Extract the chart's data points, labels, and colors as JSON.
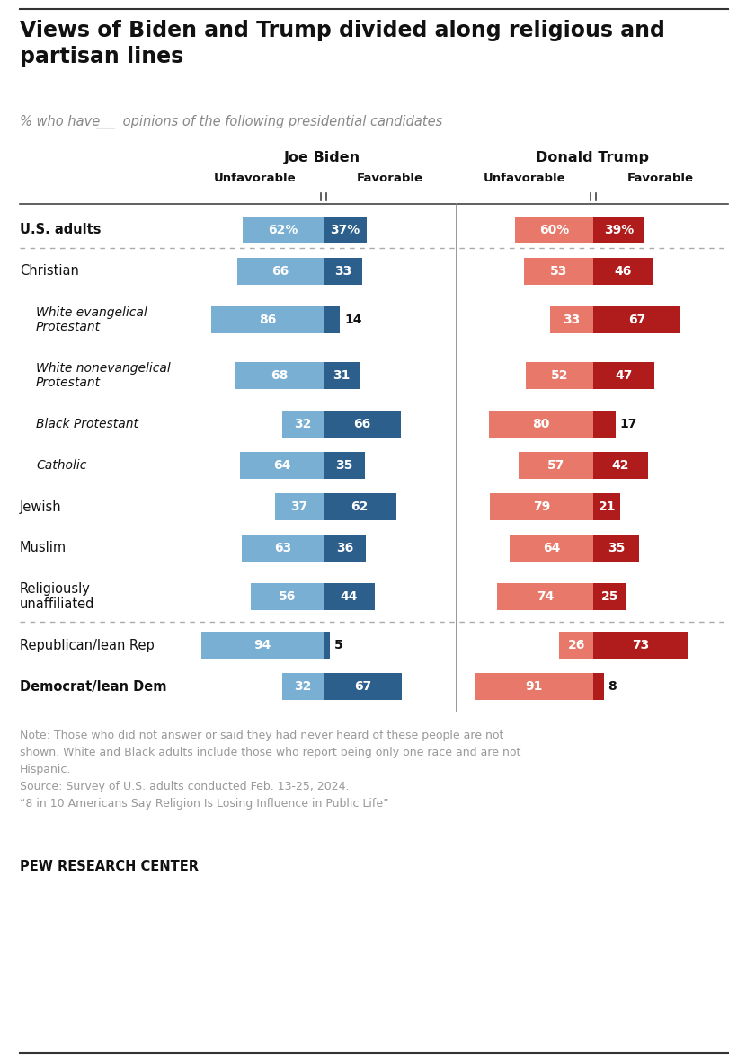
{
  "title": "Views of Biden and Trump divided along religious and\npartisan lines",
  "subtitle_parts": [
    "% who have ",
    "___",
    " opinions of the following presidential candidates"
  ],
  "biden_label": "Joe Biden",
  "trump_label": "Donald Trump",
  "rows": [
    {
      "label": "U.S. adults",
      "bold": true,
      "italic": false,
      "indent": 0,
      "biden_unf": 62,
      "biden_fav": 37,
      "trump_unf": 60,
      "trump_fav": 39,
      "pct_sign": true,
      "separator_above": false
    },
    {
      "label": "Christian",
      "bold": false,
      "italic": false,
      "indent": 0,
      "biden_unf": 66,
      "biden_fav": 33,
      "trump_unf": 53,
      "trump_fav": 46,
      "pct_sign": false,
      "separator_above": true
    },
    {
      "label": "White evangelical\nProtestant",
      "bold": false,
      "italic": true,
      "indent": 1,
      "biden_unf": 86,
      "biden_fav": 14,
      "trump_unf": 33,
      "trump_fav": 67,
      "pct_sign": false,
      "separator_above": false
    },
    {
      "label": "White nonevangelical\nProtestant",
      "bold": false,
      "italic": true,
      "indent": 1,
      "biden_unf": 68,
      "biden_fav": 31,
      "trump_unf": 52,
      "trump_fav": 47,
      "pct_sign": false,
      "separator_above": false
    },
    {
      "label": "Black Protestant",
      "bold": false,
      "italic": true,
      "indent": 1,
      "biden_unf": 32,
      "biden_fav": 66,
      "trump_unf": 80,
      "trump_fav": 17,
      "pct_sign": false,
      "separator_above": false
    },
    {
      "label": "Catholic",
      "bold": false,
      "italic": true,
      "indent": 1,
      "biden_unf": 64,
      "biden_fav": 35,
      "trump_unf": 57,
      "trump_fav": 42,
      "pct_sign": false,
      "separator_above": false
    },
    {
      "label": "Jewish",
      "bold": false,
      "italic": false,
      "indent": 0,
      "biden_unf": 37,
      "biden_fav": 62,
      "trump_unf": 79,
      "trump_fav": 21,
      "pct_sign": false,
      "separator_above": false
    },
    {
      "label": "Muslim",
      "bold": false,
      "italic": false,
      "indent": 0,
      "biden_unf": 63,
      "biden_fav": 36,
      "trump_unf": 64,
      "trump_fav": 35,
      "pct_sign": false,
      "separator_above": false
    },
    {
      "label": "Religiously\nunaffiliated",
      "bold": false,
      "italic": false,
      "indent": 0,
      "biden_unf": 56,
      "biden_fav": 44,
      "trump_unf": 74,
      "trump_fav": 25,
      "pct_sign": false,
      "separator_above": false
    },
    {
      "label": "Republican/lean Rep",
      "bold": false,
      "italic": false,
      "indent": 0,
      "biden_unf": 94,
      "biden_fav": 5,
      "trump_unf": 26,
      "trump_fav": 73,
      "pct_sign": false,
      "separator_above": true
    },
    {
      "label": "Democrat/lean Dem",
      "bold": true,
      "italic": false,
      "indent": 0,
      "biden_unf": 32,
      "biden_fav": 67,
      "trump_unf": 91,
      "trump_fav": 8,
      "pct_sign": false,
      "separator_above": false
    }
  ],
  "biden_unf_color": "#7AAFD4",
  "biden_fav_color": "#2C5F8C",
  "trump_unf_color": "#E8796A",
  "trump_fav_color": "#B01C1C",
  "note": "Note: Those who did not answer or said they had never heard of these people are not\nshown. White and Black adults include those who report being only one race and are not\nHispanic.\nSource: Survey of U.S. adults conducted Feb. 13-25, 2024.\n“8 in 10 Americans Say Religion Is Losing Influence in Public Life”",
  "footer": "PEW RESEARCH CENTER",
  "note_color": "#999999",
  "background": "#FFFFFF"
}
